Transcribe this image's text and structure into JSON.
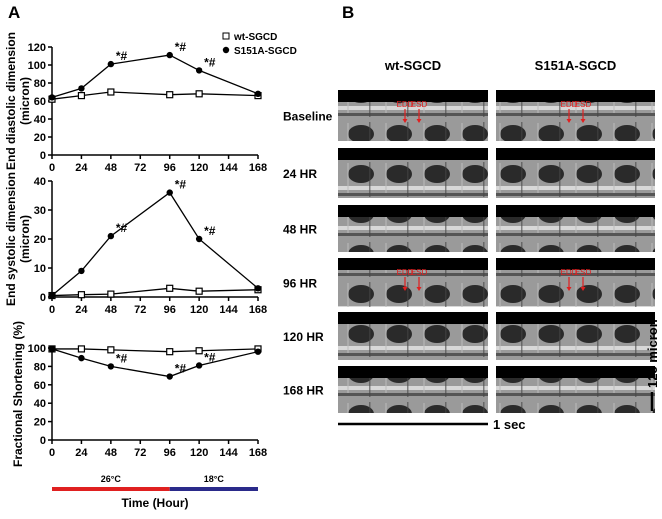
{
  "panel_labels": [
    "A",
    "B"
  ],
  "chart_data": [
    {
      "type": "line",
      "y_label_lines": [
        "End diastolic dimension",
        "(micron)"
      ],
      "x": [
        0,
        24,
        48,
        96,
        120,
        168
      ],
      "xlim": [
        0,
        168
      ],
      "xticks": [
        0,
        24,
        48,
        72,
        96,
        120,
        144,
        168
      ],
      "ylim": [
        0,
        120
      ],
      "yticks": [
        0,
        20,
        40,
        60,
        80,
        100,
        120
      ],
      "legend": "upper right",
      "series": [
        {
          "name": "wt-SGCD",
          "marker": "open-square",
          "color": "#000000",
          "values": [
            62,
            66,
            70,
            67,
            68,
            66
          ]
        },
        {
          "name": "S151A-SGCD",
          "marker": "filled-circle",
          "color": "#000000",
          "values": [
            64,
            74,
            101,
            111,
            94,
            68
          ],
          "labels": [
            null,
            null,
            "*#",
            "*#",
            "*#",
            null
          ]
        }
      ]
    },
    {
      "type": "line",
      "y_label_lines": [
        "End systolic dimension",
        "(micron)"
      ],
      "x": [
        0,
        24,
        48,
        96,
        120,
        168
      ],
      "xlim": [
        0,
        168
      ],
      "xticks": [
        0,
        24,
        48,
        72,
        96,
        120,
        144,
        168
      ],
      "ylim": [
        0,
        40
      ],
      "yticks": [
        0,
        10,
        20,
        30,
        40
      ],
      "series": [
        {
          "name": "wt-SGCD",
          "marker": "open-square",
          "color": "#000000",
          "values": [
            0.5,
            0.8,
            1,
            3,
            2,
            2.5
          ]
        },
        {
          "name": "S151A-SGCD",
          "marker": "filled-circle",
          "color": "#000000",
          "values": [
            0.5,
            9,
            21,
            36,
            20,
            3
          ],
          "labels": [
            null,
            null,
            "*#",
            "*#",
            "*#",
            null
          ]
        }
      ]
    },
    {
      "type": "line",
      "y_label_lines": [
        "Fractional Shortening (%)"
      ],
      "x_label": "Time (Hour)",
      "x": [
        0,
        24,
        48,
        96,
        120,
        168
      ],
      "xlim": [
        0,
        168
      ],
      "xticks": [
        0,
        24,
        48,
        72,
        96,
        120,
        144,
        168
      ],
      "ylim": [
        0,
        100
      ],
      "yticks": [
        0,
        20,
        40,
        60,
        80,
        100
      ],
      "series": [
        {
          "name": "wt-SGCD",
          "marker": "open-square",
          "color": "#000000",
          "values": [
            99,
            99,
            98,
            96,
            97,
            99
          ]
        },
        {
          "name": "S151A-SGCD",
          "marker": "filled-circle",
          "color": "#000000",
          "values": [
            99,
            89,
            80,
            69,
            81,
            96
          ],
          "labels": [
            null,
            null,
            "*#",
            "*#",
            "*#",
            null
          ]
        }
      ],
      "temperature_bar": [
        {
          "label": "26°C",
          "from": 0,
          "to": 96,
          "color": "#e02020"
        },
        {
          "label": "18°C",
          "from": 96,
          "to": 168,
          "color": "#2a2a8a"
        }
      ]
    }
  ],
  "panel_b": {
    "columns": [
      "wt-SGCD",
      "S151A-SGCD"
    ],
    "rows": [
      {
        "label": "Baseline",
        "markers": [
          "EDD",
          "ESD"
        ]
      },
      {
        "label": "24 HR"
      },
      {
        "label": "48 HR"
      },
      {
        "label": "96 HR",
        "markers": [
          "EDD",
          "ESD"
        ]
      },
      {
        "label": "120 HR"
      },
      {
        "label": "168 HR"
      }
    ],
    "time_scale": "1 sec",
    "depth_scale": "125 micron"
  }
}
